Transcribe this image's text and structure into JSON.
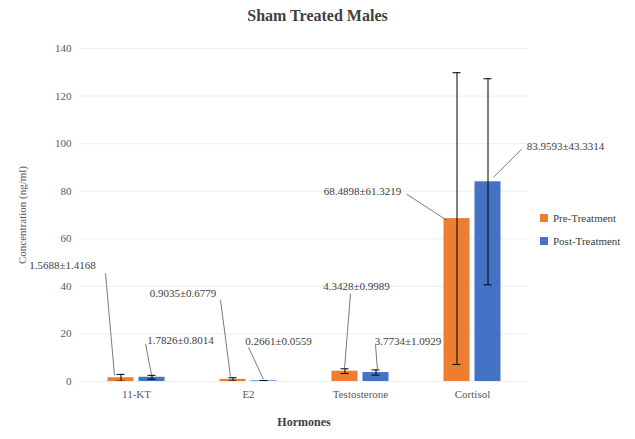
{
  "chart_data": {
    "type": "bar",
    "title": "Sham Treated Males",
    "x_label": "Hormones",
    "y_label": "Concentration (ng/ml)",
    "categories": [
      "11-KT",
      "E2",
      "Testosterone",
      "Cortisol"
    ],
    "series": [
      {
        "name": "Pre-Treatment",
        "color": "#ED7D31",
        "values": [
          1.5688,
          0.9035,
          4.3428,
          68.4898
        ],
        "errors": [
          1.4168,
          0.6779,
          0.9989,
          61.3219
        ],
        "value_labels": [
          "1.5688±1.4168",
          "0.9035±0.6779",
          "4.3428±0.9989",
          "68.4898±61.3219"
        ]
      },
      {
        "name": "Post-Treatment",
        "color": "#4472C4",
        "values": [
          1.7826,
          0.2661,
          3.7734,
          83.9593
        ],
        "errors": [
          0.8014,
          0.0559,
          1.0929,
          43.3314
        ],
        "value_labels": [
          "1.7826±0.8014",
          "0.2661±0.0559",
          "3.7734±1.0929",
          "83.9593±43.3314"
        ]
      }
    ],
    "ylim": [
      0,
      140
    ],
    "yticks": [
      0,
      20,
      40,
      60,
      80,
      100,
      120,
      140
    ],
    "grid": true,
    "legend": "right",
    "data_labels": true
  }
}
